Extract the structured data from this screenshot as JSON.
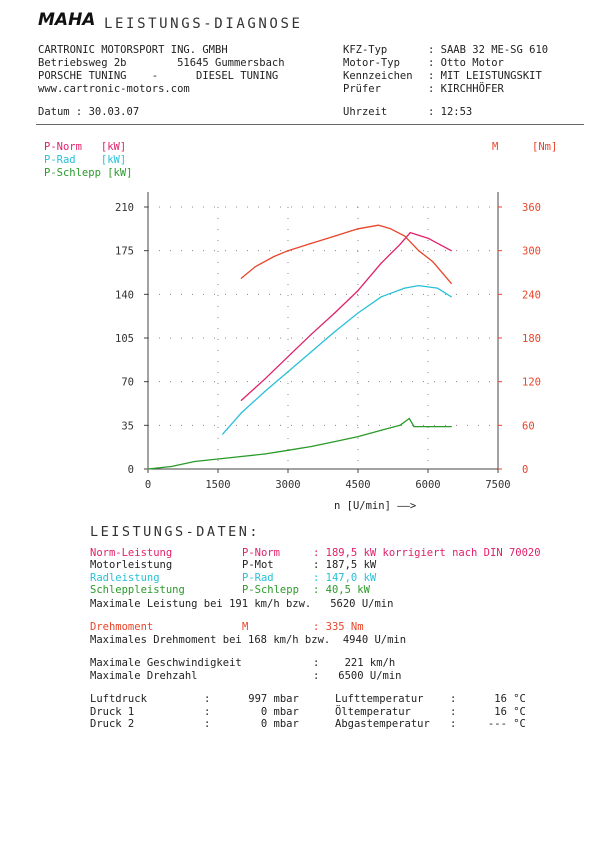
{
  "header": {
    "brand": "MAHA",
    "title": "LEISTUNGS-DIAGNOSE",
    "company": [
      "CARTRONIC MOTORSPORT ING. GMBH",
      "Betriebsweg 2b        51645 Gummersbach",
      "PORSCHE TUNING    -      DIESEL TUNING",
      "www.cartronic-motors.com"
    ],
    "fields": [
      {
        "label": "KFZ-Typ",
        "value": ": SAAB 32 ME-SG 610"
      },
      {
        "label": "Motor-Typ",
        "value": ": Otto Motor"
      },
      {
        "label": "Kennzeichen",
        "value": ": MIT LEISTUNGSKIT"
      },
      {
        "label": "Prüfer",
        "value": ": KIRCHHÖFER"
      }
    ],
    "date_label": "Datum : 30.03.07",
    "time_label": "Uhrzeit",
    "time_value": ": 12:53"
  },
  "legend": {
    "pnorm": "P-Norm   [kW]",
    "prad": "P-Rad    [kW]",
    "pschlepp": "P-Schlepp [kW]",
    "m_label": "M",
    "m_unit": "[Nm]"
  },
  "colors": {
    "pnorm": "#e0206a",
    "prad": "#29c0d8",
    "pschlepp": "#2a9a2a",
    "torque": "#e8452a"
  },
  "chart_data": {
    "type": "line",
    "xlabel": "n [U/min] ——>",
    "xlim": [
      0,
      7500
    ],
    "x_ticks": [
      "0",
      "1500",
      "3000",
      "4500",
      "6000",
      "7500"
    ],
    "ylim_left": [
      0,
      210
    ],
    "y_ticks_left": [
      "0",
      "35",
      "70",
      "105",
      "140",
      "175",
      "210"
    ],
    "ylim_right": [
      0,
      360
    ],
    "y_ticks_right": [
      "0",
      "60",
      "120",
      "180",
      "240",
      "300",
      "360"
    ],
    "grid": true,
    "series": [
      {
        "name": "P-Norm",
        "axis": "left",
        "x": [
          2000,
          2500,
          3000,
          3500,
          4000,
          4500,
          5000,
          5400,
          5620,
          6000,
          6500
        ],
        "y": [
          55,
          72,
          90,
          108,
          125,
          143,
          165,
          180,
          189.5,
          185,
          175
        ]
      },
      {
        "name": "P-Rad",
        "axis": "left",
        "x": [
          1600,
          2000,
          2500,
          3000,
          3500,
          4000,
          4500,
          5000,
          5500,
          5800,
          6200,
          6500
        ],
        "y": [
          28,
          45,
          62,
          78,
          94,
          110,
          125,
          138,
          145,
          147,
          145,
          138
        ]
      },
      {
        "name": "P-Schlepp",
        "axis": "left",
        "x": [
          0,
          500,
          1000,
          1500,
          2000,
          2500,
          3000,
          3500,
          4000,
          4500,
          5000,
          5400,
          5600,
          5700,
          6000,
          6500
        ],
        "y": [
          0,
          2,
          6,
          8,
          10,
          12,
          15,
          18,
          22,
          26,
          31,
          35,
          40.5,
          34,
          34,
          34
        ]
      },
      {
        "name": "M",
        "axis": "right",
        "x": [
          2000,
          2300,
          2700,
          3000,
          3500,
          4000,
          4500,
          4940,
          5200,
          5500,
          5800,
          6100,
          6500
        ],
        "y": [
          262,
          278,
          292,
          300,
          310,
          320,
          330,
          335,
          330,
          320,
          300,
          285,
          255
        ]
      }
    ]
  },
  "data_section": {
    "title": "LEISTUNGS-DATEN:",
    "rows": [
      {
        "label": "Norm-Leistung",
        "sym": "P-Norm",
        "value": ": 189,5 kW korrigiert nach DIN 70020",
        "color": "#e0206a"
      },
      {
        "label": "Motorleistung",
        "sym": "P-Mot",
        "value": ": 187,5 kW",
        "color": "#222"
      },
      {
        "label": "Radleistung",
        "sym": "P-Rad",
        "value": ": 147,0 kW",
        "color": "#29c0d8"
      },
      {
        "label": "Schleppleistung",
        "sym": "P-Schlepp",
        "value": ": 40,5 kW",
        "color": "#2a9a2a"
      }
    ],
    "max_power": "Maximale Leistung bei 191 km/h bzw.   5620 U/min",
    "torque_label": "Drehmoment",
    "torque_sym": "M",
    "torque_value": ": 335 Nm",
    "max_torque": "Maximales Drehmoment bei 168 km/h bzw.  4940 U/min",
    "max_speed_label": "Maximale Geschwindigkeit",
    "max_speed_value": ":    221 km/h",
    "max_rpm_label": "Maximale Drehzahl",
    "max_rpm_value": ":   6500 U/min",
    "pressures": [
      {
        "label": "Luftdruck",
        "value": ":      997 mbar",
        "label2": "Lufttemperatur",
        "value2": ":      16 °C"
      },
      {
        "label": "Druck 1",
        "value": ":        0 mbar",
        "label2": "Öltemperatur",
        "value2": ":      16 °C"
      },
      {
        "label": "Druck 2",
        "value": ":        0 mbar",
        "label2": "Abgastemperatur",
        "value2": ":     --- °C"
      }
    ]
  }
}
